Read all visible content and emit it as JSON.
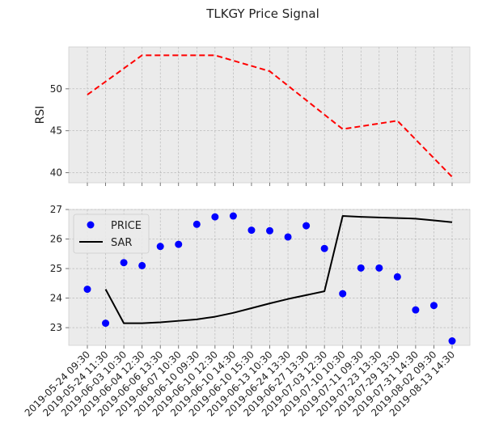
{
  "chart_data": {
    "title": "TLKGY Price Signal",
    "categories": [
      "2019-05-24 09:30",
      "2019-05-24 11:30",
      "2019-06-03 10:30",
      "2019-06-04 12:30",
      "2019-06-06 13:30",
      "2019-06-07 10:30",
      "2019-06-10 09:30",
      "2019-06-10 12:30",
      "2019-06-10 14:30",
      "2019-06-10 15:30",
      "2019-06-13 10:30",
      "2019-06-24 13:30",
      "2019-06-27 13:30",
      "2019-07-03 12:30",
      "2019-07-10 10:30",
      "2019-07-11 09:30",
      "2019-07-23 13:30",
      "2019-07-29 13:30",
      "2019-07-31 14:30",
      "2019-08-02 09:30",
      "2019-08-13 14:30"
    ],
    "rsi_panel": {
      "type": "line",
      "ylabel": "RSI",
      "ylim": [
        38.8,
        55.0
      ],
      "yticks": [
        40,
        45,
        50
      ],
      "grid": true,
      "series": [
        {
          "values": [
            49.3,
            null,
            null,
            54.0,
            null,
            null,
            null,
            54.0,
            null,
            null,
            52.1,
            null,
            null,
            null,
            45.2,
            null,
            null,
            46.2,
            null,
            null,
            39.5
          ],
          "color": "#ff0000",
          "style": "dashed"
        }
      ]
    },
    "price_panel": {
      "type": "line+scatter",
      "ylim": [
        22.4,
        27.0
      ],
      "yticks": [
        23,
        24,
        25,
        26,
        27
      ],
      "grid": true,
      "legend_position": "top-left",
      "series": [
        {
          "name": "PRICE",
          "type": "scatter",
          "color": "#0000ff",
          "values": [
            24.3,
            23.15,
            25.2,
            25.1,
            25.75,
            25.82,
            26.5,
            26.75,
            26.78,
            26.3,
            26.28,
            26.07,
            26.45,
            25.68,
            24.15,
            25.02,
            25.02,
            24.72,
            23.6,
            23.75,
            22.55
          ]
        },
        {
          "name": "SAR",
          "type": "line",
          "color": "#000000",
          "values": [
            null,
            24.3,
            23.15,
            23.15,
            23.18,
            23.23,
            23.28,
            23.37,
            23.5,
            23.66,
            23.82,
            23.97,
            24.1,
            24.23,
            26.78,
            26.75,
            26.73,
            26.71,
            26.69,
            26.63,
            26.57
          ]
        }
      ]
    }
  }
}
